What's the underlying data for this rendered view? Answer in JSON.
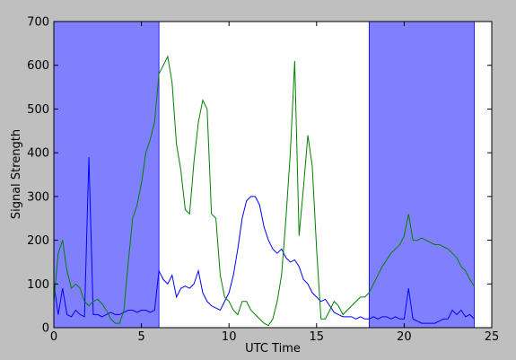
{
  "chart_data": {
    "type": "line",
    "xlabel": "UTC Time",
    "ylabel": "Signal Strength",
    "xlim": [
      0,
      25
    ],
    "ylim": [
      0,
      700
    ],
    "xticks": [
      0,
      5,
      10,
      15,
      20,
      25
    ],
    "yticks": [
      0,
      100,
      200,
      300,
      400,
      500,
      600,
      700
    ],
    "spans": [
      [
        0,
        6
      ],
      [
        18,
        24
      ]
    ],
    "span_color": "#8080ff",
    "x": [
      0,
      0.25,
      0.5,
      0.75,
      1,
      1.25,
      1.5,
      1.75,
      2,
      2.25,
      2.5,
      2.75,
      3,
      3.25,
      3.5,
      3.75,
      4,
      4.25,
      4.5,
      4.75,
      5,
      5.25,
      5.5,
      5.75,
      6,
      6.25,
      6.5,
      6.75,
      7,
      7.25,
      7.5,
      7.75,
      8,
      8.25,
      8.5,
      8.75,
      9,
      9.25,
      9.5,
      9.75,
      10,
      10.25,
      10.5,
      10.75,
      11,
      11.25,
      11.5,
      11.75,
      12,
      12.25,
      12.5,
      12.75,
      13,
      13.25,
      13.5,
      13.75,
      14,
      14.25,
      14.5,
      14.75,
      15,
      15.25,
      15.5,
      15.75,
      16,
      16.25,
      16.5,
      16.75,
      17,
      17.25,
      17.5,
      17.75,
      18,
      18.25,
      18.5,
      18.75,
      19,
      19.25,
      19.5,
      19.75,
      20,
      20.25,
      20.5,
      20.75,
      21,
      21.25,
      21.5,
      21.75,
      22,
      22.25,
      22.5,
      22.75,
      23,
      23.25,
      23.5,
      23.75,
      24
    ],
    "series": [
      {
        "color": "#0000ff",
        "values": [
          100,
          30,
          90,
          30,
          25,
          40,
          30,
          25,
          390,
          30,
          30,
          25,
          30,
          35,
          30,
          30,
          35,
          40,
          40,
          35,
          40,
          40,
          35,
          40,
          130,
          110,
          100,
          120,
          70,
          90,
          95,
          90,
          100,
          130,
          80,
          60,
          50,
          45,
          40,
          60,
          80,
          120,
          180,
          250,
          290,
          300,
          300,
          280,
          230,
          200,
          180,
          170,
          180,
          160,
          150,
          155,
          140,
          110,
          100,
          80,
          70,
          60,
          65,
          50,
          35,
          30,
          25,
          25,
          25,
          20,
          25,
          20,
          20,
          25,
          20,
          25,
          25,
          20,
          25,
          20,
          20,
          90,
          20,
          15,
          10,
          10,
          10,
          10,
          15,
          20,
          20,
          40,
          30,
          40,
          25,
          30,
          20
        ]
      },
      {
        "color": "#008000",
        "values": [
          60,
          170,
          200,
          130,
          90,
          100,
          90,
          60,
          50,
          60,
          65,
          55,
          40,
          20,
          10,
          10,
          40,
          150,
          250,
          280,
          330,
          400,
          430,
          470,
          580,
          600,
          620,
          560,
          420,
          360,
          270,
          260,
          380,
          470,
          520,
          500,
          260,
          250,
          120,
          70,
          60,
          40,
          30,
          60,
          60,
          40,
          30,
          20,
          10,
          5,
          20,
          60,
          120,
          250,
          400,
          610,
          210,
          320,
          440,
          370,
          180,
          20,
          20,
          40,
          60,
          50,
          30,
          40,
          50,
          60,
          70,
          70,
          80,
          100,
          120,
          140,
          155,
          170,
          180,
          190,
          210,
          260,
          200,
          200,
          205,
          200,
          195,
          190,
          190,
          185,
          180,
          170,
          160,
          140,
          130,
          110,
          95
        ]
      }
    ]
  }
}
